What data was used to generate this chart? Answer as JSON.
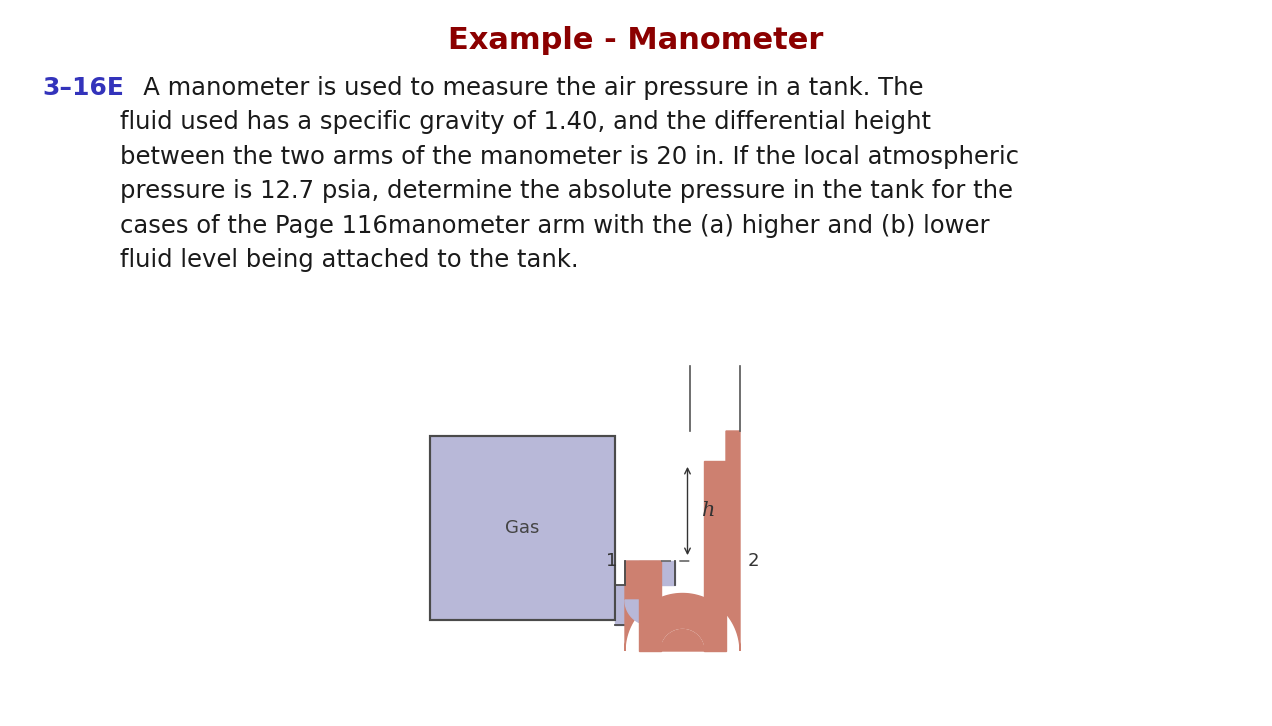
{
  "title": "Example - Manometer",
  "title_color": "#8B0000",
  "title_fontsize": 22,
  "problem_number": "3–16E",
  "problem_number_color": "#3333BB",
  "problem_number_fontsize": 18,
  "problem_body": "   A manometer is used to measure the air pressure in a tank. The\nfluid used has a specific gravity of 1.40, and the differential height\nbetween the two arms of the manometer is 20 in. If the local atmospheric\npressure is 12.7 psia, determine the absolute pressure in the tank for the\ncases of the Page 116manometer arm with the (a) higher and (b) lower\nfluid level being attached to the tank.",
  "problem_fontsize": 17.5,
  "background_color": "#FFFFFF",
  "tank_fill_color": "#B8B8D8",
  "tank_edge_color": "#4A4A4A",
  "tube_color": "#CD8070",
  "gas_label": "Gas",
  "gas_label_fontsize": 13,
  "h_label": "h",
  "label_1": "1",
  "label_2": "2",
  "label_fontsize": 13,
  "line_color": "#555555"
}
